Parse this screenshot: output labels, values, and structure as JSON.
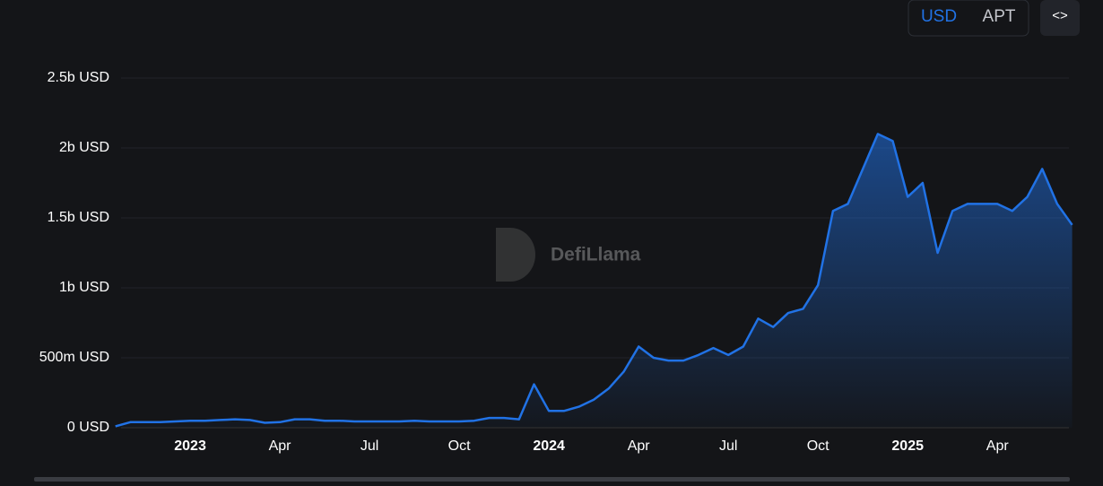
{
  "ui": {
    "currency_options": [
      "USD",
      "APT"
    ],
    "embed_button": "<>",
    "watermark": "DefiLlama"
  },
  "chart_data": {
    "type": "area",
    "categories": [
      null,
      null,
      null,
      null,
      null,
      "2023",
      null,
      null,
      null,
      null,
      null,
      "Apr",
      null,
      null,
      null,
      null,
      null,
      "Jul",
      null,
      null,
      null,
      null,
      null,
      "Oct",
      null,
      null,
      null,
      null,
      null,
      "2024",
      null,
      null,
      null,
      null,
      null,
      "Apr",
      null,
      null,
      null,
      null,
      null,
      "Jul",
      null,
      null,
      null,
      null,
      null,
      "Oct",
      null,
      null,
      null,
      null,
      null,
      "2025",
      null,
      null,
      null,
      null,
      null,
      "Apr",
      null,
      null,
      null,
      null,
      null
    ],
    "series": [
      {
        "name": "USD",
        "color": "#2172e5",
        "values": [
          10000000,
          40000000,
          40000000,
          40000000,
          45000000,
          50000000,
          50000000,
          55000000,
          60000000,
          55000000,
          35000000,
          40000000,
          60000000,
          60000000,
          50000000,
          50000000,
          45000000,
          45000000,
          45000000,
          45000000,
          50000000,
          45000000,
          45000000,
          45000000,
          50000000,
          70000000,
          70000000,
          60000000,
          310000000,
          120000000,
          120000000,
          150000000,
          200000000,
          280000000,
          400000000,
          580000000,
          500000000,
          480000000,
          480000000,
          520000000,
          570000000,
          520000000,
          580000000,
          780000000,
          720000000,
          820000000,
          850000000,
          1020000000,
          1550000000,
          1600000000,
          1850000000,
          2100000000,
          2050000000,
          1650000000,
          1750000000,
          1250000000,
          1550000000,
          1600000000,
          1600000000,
          1600000000,
          1550000000,
          1650000000,
          1850000000,
          1600000000,
          1450000000
        ]
      }
    ],
    "ylim": [
      0,
      2500000000
    ],
    "yticks": [
      {
        "value": 0,
        "label": "0 USD"
      },
      {
        "value": 500000000,
        "label": "500m USD"
      },
      {
        "value": 1000000000,
        "label": "1b USD"
      },
      {
        "value": 1500000000,
        "label": "1.5b USD"
      },
      {
        "value": 2000000000,
        "label": "2b USD"
      },
      {
        "value": 2500000000,
        "label": "2.5b USD"
      }
    ],
    "grid": true
  }
}
